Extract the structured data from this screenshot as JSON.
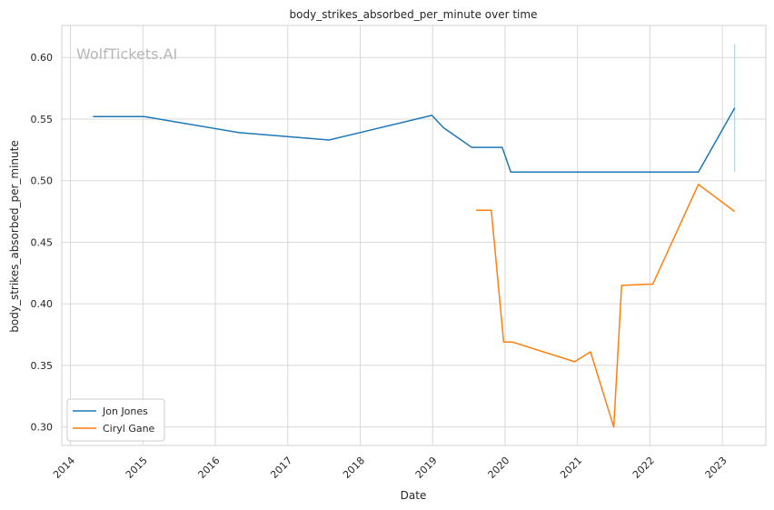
{
  "chart_data": {
    "type": "line",
    "title": "body_strikes_absorbed_per_minute over time",
    "xlabel": "Date",
    "ylabel": "body_strikes_absorbed_per_minute",
    "watermark": "WolfTickets.AI",
    "xlim": [
      2013.88,
      2023.6
    ],
    "ylim": [
      0.285,
      0.626
    ],
    "x_ticks": [
      2014,
      2015,
      2016,
      2017,
      2018,
      2019,
      2020,
      2021,
      2022,
      2023
    ],
    "x_tick_labels": [
      "2014",
      "2015",
      "2016",
      "2017",
      "2018",
      "2019",
      "2020",
      "2021",
      "2022",
      "2023"
    ],
    "y_ticks": [
      0.3,
      0.35,
      0.4,
      0.45,
      0.5,
      0.55,
      0.6
    ],
    "y_tick_labels": [
      "0.30",
      "0.35",
      "0.40",
      "0.45",
      "0.50",
      "0.55",
      "0.60"
    ],
    "grid": true,
    "legend_position": "lower-left",
    "series": [
      {
        "name": "Jon Jones",
        "color": "#1f77b4",
        "x": [
          2014.31,
          2015.02,
          2016.33,
          2017.57,
          2018.99,
          2019.15,
          2019.54,
          2019.96,
          2020.08,
          2022.67,
          2023.17
        ],
        "y": [
          0.552,
          0.552,
          0.539,
          0.533,
          0.553,
          0.543,
          0.527,
          0.527,
          0.507,
          0.507,
          0.559
        ]
      },
      {
        "name": "Ciryl Gane",
        "color": "#ff7f0e",
        "x": [
          2019.6,
          2019.81,
          2019.98,
          2020.1,
          2020.96,
          2021.18,
          2021.5,
          2021.61,
          2022.04,
          2022.67,
          2023.17
        ],
        "y": [
          0.476,
          0.476,
          0.369,
          0.369,
          0.353,
          0.361,
          0.3,
          0.415,
          0.416,
          0.497,
          0.475
        ]
      }
    ],
    "error_bar": {
      "x": 2023.17,
      "y_low": 0.507,
      "y_high": 0.611,
      "color": "#a6cbe3"
    }
  }
}
